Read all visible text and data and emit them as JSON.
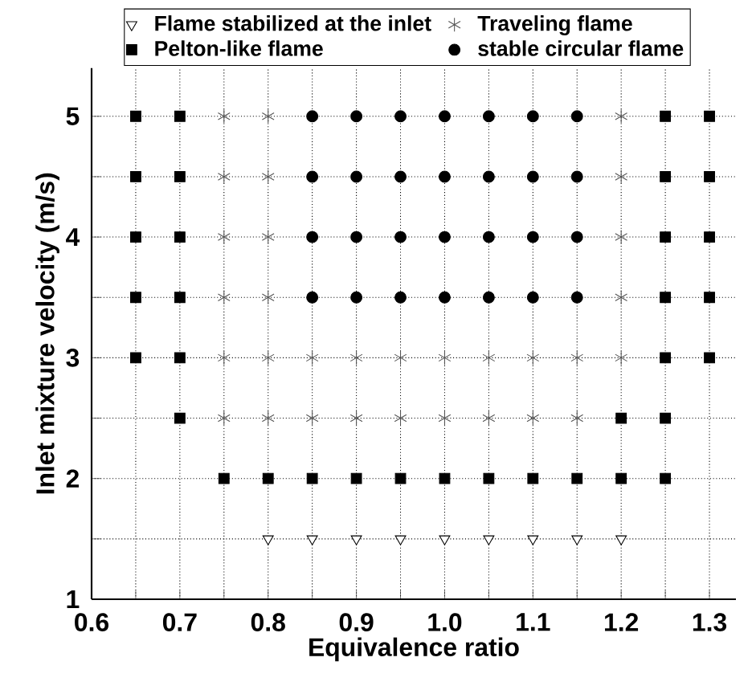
{
  "chart_data": {
    "type": "scatter",
    "xlabel": "Equivalence ratio",
    "ylabel": "Inlet mixture velocity (m/s)",
    "xlim": [
      0.6,
      1.33
    ],
    "ylim": [
      1,
      5.4
    ],
    "xticks": [
      0.6,
      {
        "value": 0.65,
        "label": null
      },
      0.7,
      {
        "value": 0.75,
        "label": null
      },
      0.8,
      {
        "value": 0.85,
        "label": null
      },
      0.9,
      {
        "value": 0.95,
        "label": null
      },
      {
        "value": 1.0,
        "label": "1.0"
      },
      {
        "value": 1.05,
        "label": null
      },
      1.1,
      {
        "value": 1.15,
        "label": null
      },
      1.2,
      {
        "value": 1.25,
        "label": null
      },
      1.3
    ],
    "yticks": [
      1,
      {
        "value": 1.5,
        "label": null
      },
      2,
      {
        "value": 2.5,
        "label": null
      },
      3,
      {
        "value": 3.5,
        "label": null
      },
      4,
      {
        "value": 4.5,
        "label": null
      },
      5
    ],
    "grid": true,
    "legend": "top",
    "series": [
      {
        "name": "Flame stabilized at the inlet",
        "color": "#000000",
        "marker": "triangle",
        "x": [
          0.8,
          0.85,
          0.9,
          0.95,
          1.0,
          1.05,
          1.1,
          1.15,
          1.2
        ],
        "values": [
          1.5,
          1.5,
          1.5,
          1.5,
          1.5,
          1.5,
          1.5,
          1.5,
          1.5
        ]
      },
      {
        "name": "Traveling flame",
        "color": "#555555",
        "marker": "cross",
        "x": [
          0.75,
          0.8,
          1.2,
          0.75,
          0.8,
          1.2,
          0.75,
          0.8,
          1.2,
          0.75,
          0.8,
          1.2,
          0.75,
          0.8,
          0.85,
          0.9,
          0.95,
          1.0,
          1.05,
          1.1,
          1.15,
          1.2,
          0.75,
          0.8,
          0.85,
          0.9,
          0.95,
          1.0,
          1.05,
          1.1,
          1.15
        ],
        "values": [
          5,
          5,
          5,
          4.5,
          4.5,
          4.5,
          4,
          4,
          4,
          3.5,
          3.5,
          3.5,
          3,
          3,
          3,
          3,
          3,
          3,
          3,
          3,
          3,
          3,
          2.5,
          2.5,
          2.5,
          2.5,
          2.5,
          2.5,
          2.5,
          2.5,
          2.5
        ]
      },
      {
        "name": "Pelton-like flame",
        "color": "#000000",
        "marker": "square",
        "x": [
          0.65,
          0.7,
          1.25,
          1.3,
          0.65,
          0.7,
          1.25,
          1.3,
          0.65,
          0.7,
          1.25,
          1.3,
          0.65,
          0.7,
          1.25,
          1.3,
          0.65,
          0.7,
          1.25,
          1.3,
          0.7,
          1.2,
          1.25,
          0.75,
          0.8,
          0.85,
          0.9,
          0.95,
          1.0,
          1.05,
          1.1,
          1.15,
          1.2,
          1.25
        ],
        "values": [
          5,
          5,
          5,
          5,
          4.5,
          4.5,
          4.5,
          4.5,
          4,
          4,
          4,
          4,
          3.5,
          3.5,
          3.5,
          3.5,
          3,
          3,
          3,
          3,
          2.5,
          2.5,
          2.5,
          2,
          2,
          2,
          2,
          2,
          2,
          2,
          2,
          2,
          2,
          2
        ]
      },
      {
        "name": "stable circular flame",
        "color": "#000000",
        "marker": "circle",
        "x": [
          0.85,
          0.9,
          0.95,
          1.0,
          1.05,
          1.1,
          1.15,
          0.85,
          0.9,
          0.95,
          1.0,
          1.05,
          1.1,
          1.15,
          0.85,
          0.9,
          0.95,
          1.0,
          1.05,
          1.1,
          1.15,
          0.85,
          0.9,
          0.95,
          1.0,
          1.05,
          1.1,
          1.15
        ],
        "values": [
          5,
          5,
          5,
          5,
          5,
          5,
          5,
          4.5,
          4.5,
          4.5,
          4.5,
          4.5,
          4.5,
          4.5,
          4,
          4,
          4,
          4,
          4,
          4,
          4,
          3.5,
          3.5,
          3.5,
          3.5,
          3.5,
          3.5,
          3.5
        ]
      }
    ]
  }
}
